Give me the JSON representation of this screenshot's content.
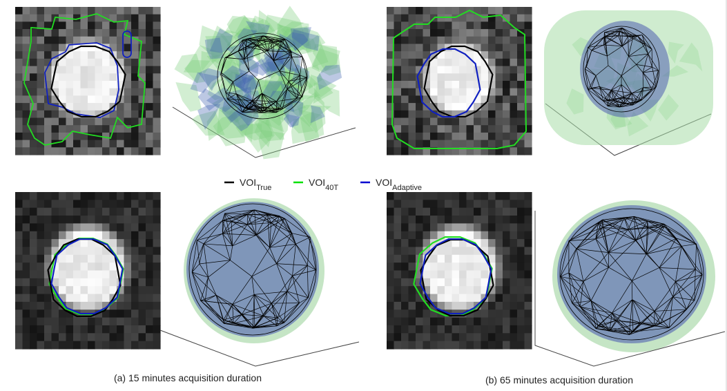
{
  "legend": [
    {
      "label": "VOI",
      "subscript": "True",
      "color": "#000000"
    },
    {
      "label": "VOI",
      "subscript": "40T",
      "color": "#00e000"
    },
    {
      "label": "VOI",
      "subscript": "Adaptive",
      "color": "#0000d0"
    }
  ],
  "captions": [
    "(a) 15 minutes acquisition duration",
    "(b) 65 minutes acquisition duration"
  ]
}
